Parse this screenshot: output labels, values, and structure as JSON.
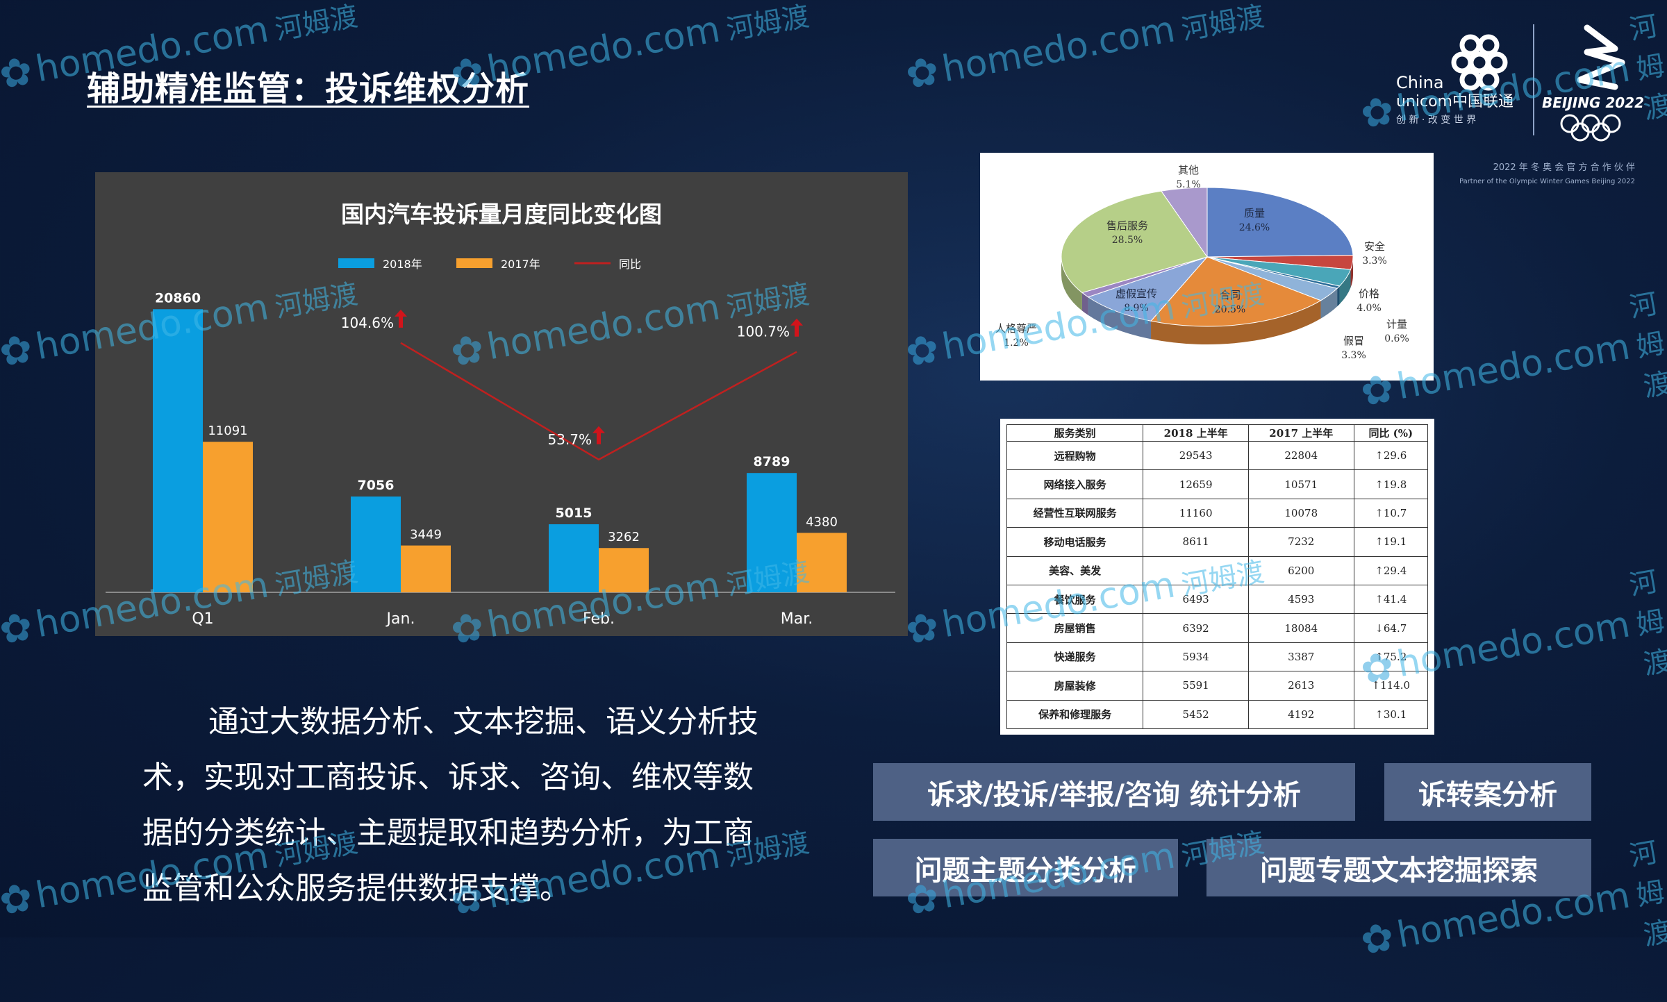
{
  "slide_title": "辅助精准监管：投诉维权分析",
  "logos": {
    "unicom_line1": "China",
    "unicom_line2": "unicom中国联通",
    "unicom_slogan": "创 新 · 改 变 世 界",
    "beijing_text": "BEIJING 2022",
    "partner_line1": "2022 年 冬 奥 会 官 方 合 作 伙 伴",
    "partner_line2": "Partner of the Olympic Winter Games Beijing 2022"
  },
  "chart_data": [
    {
      "type": "bar",
      "title": "国内汽车投诉量月度同比变化图",
      "categories": [
        "Q1",
        "Jan.",
        "Feb.",
        "Mar."
      ],
      "series": [
        {
          "name": "2018年",
          "values": [
            20860,
            7056,
            5015,
            8789
          ],
          "color": "#0a9ee0"
        },
        {
          "name": "2017年",
          "values": [
            11091,
            3449,
            3262,
            4380
          ],
          "color": "#f7a02e"
        }
      ],
      "line_series": {
        "name": "同比",
        "labels": [
          "104.6%",
          "53.7%",
          "100.7%"
        ],
        "values": [
          104.6,
          53.7,
          100.7
        ],
        "color": "#c0201f"
      },
      "data_labels_2018": [
        "20860",
        "7056",
        "5015",
        "8789"
      ],
      "data_labels_2017": [
        "11091",
        "3449",
        "3262",
        "4380"
      ],
      "ylim": [
        0,
        22000
      ],
      "legend_position": "top-center"
    },
    {
      "type": "pie",
      "title": "",
      "slices": [
        {
          "label": "质量",
          "pct": "24.6%",
          "value": 24.6,
          "color": "#5b7fc4"
        },
        {
          "label": "安全",
          "pct": "3.3%",
          "value": 3.3,
          "color": "#c7463f"
        },
        {
          "label": "价格",
          "pct": "4.0%",
          "value": 4.0,
          "color": "#4aa6b8"
        },
        {
          "label": "计量",
          "pct": "0.6%",
          "value": 0.6,
          "color": "#2d6e9a"
        },
        {
          "label": "假冒",
          "pct": "3.3%",
          "value": 3.3,
          "color": "#8fb3d9"
        },
        {
          "label": "合同",
          "pct": "20.5%",
          "value": 20.5,
          "color": "#e58a3a"
        },
        {
          "label": "虚假宣传",
          "pct": "8.9%",
          "value": 8.9,
          "color": "#8aa6d8"
        },
        {
          "label": "人格尊严",
          "pct": "1.2%",
          "value": 1.2,
          "color": "#9b86c2"
        },
        {
          "label": "售后服务",
          "pct": "28.5%",
          "value": 28.5,
          "color": "#b6cf88"
        },
        {
          "label": "其他",
          "pct": "5.1%",
          "value": 5.1,
          "color": "#a999cc"
        }
      ]
    }
  ],
  "table": {
    "headers": [
      "服务类别",
      "2018 上半年",
      "2017 上半年",
      "同比 (%)"
    ],
    "rows": [
      [
        "远程购物",
        "29543",
        "22804",
        "↑29.6"
      ],
      [
        "网络接入服务",
        "12659",
        "10571",
        "↑19.8"
      ],
      [
        "经营性互联网服务",
        "11160",
        "10078",
        "↑10.7"
      ],
      [
        "移动电话服务",
        "8611",
        "7232",
        "↑19.1"
      ],
      [
        "美容、美发",
        "",
        "6200",
        "↑29.4"
      ],
      [
        "餐饮服务",
        "6493",
        "4593",
        "↑41.4"
      ],
      [
        "房屋销售",
        "6392",
        "18084",
        "↓64.7"
      ],
      [
        "快递服务",
        "5934",
        "3387",
        "↑75.2"
      ],
      [
        "房屋装修",
        "5591",
        "2613",
        "↑114.0"
      ],
      [
        "保养和修理服务",
        "5452",
        "4192",
        "↑30.1"
      ]
    ]
  },
  "description": "通过大数据分析、文本挖掘、语义分析技术，实现对工商投诉、诉求、咨询、维权等数据的分类统计、主题提取和趋势分析，为工商监管和公众服务提供数据支撑。",
  "tags": {
    "tag1": "诉求/投诉/举报/咨询 统计分析",
    "tag2": "诉转案分析",
    "tag3": "问题主题分类分析",
    "tag4": "问题专题文本挖掘探索"
  },
  "watermark": {
    "text": "homedo.com",
    "cn": "河姆渡"
  }
}
